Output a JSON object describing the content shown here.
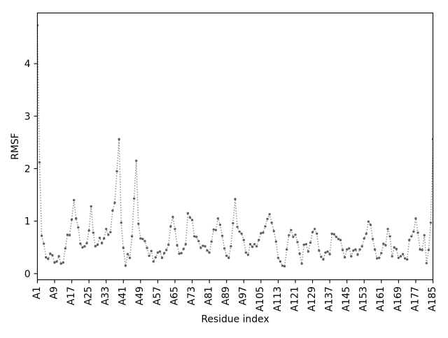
{
  "chart_data": {
    "type": "line",
    "title": "",
    "xlabel": "Residue index",
    "ylabel": "RMSF",
    "x_tick_labels": [
      "A1",
      "A9",
      "A17",
      "A25",
      "A33",
      "A41",
      "A49",
      "A57",
      "A65",
      "A73",
      "A81",
      "A89",
      "A97",
      "A105",
      "A113",
      "A121",
      "A129",
      "A137",
      "A145",
      "A153",
      "A161",
      "A169",
      "A177",
      "A185"
    ],
    "x_tick_step": 8,
    "yticks": [
      0,
      1,
      2,
      3,
      4
    ],
    "ylim": [
      -0.117,
      4.965
    ],
    "grid": false,
    "legend": null,
    "line_style": "dotted",
    "marker": "point",
    "line_color": "#848484",
    "marker_color": "#616161",
    "values": [
      4.73,
      2.12,
      0.72,
      0.57,
      0.31,
      0.28,
      0.38,
      0.35,
      0.21,
      0.23,
      0.33,
      0.19,
      0.21,
      0.48,
      0.74,
      0.73,
      1.03,
      1.4,
      1.05,
      0.88,
      0.57,
      0.5,
      0.52,
      0.58,
      0.82,
      1.28,
      0.78,
      0.52,
      0.55,
      0.68,
      0.58,
      0.67,
      0.85,
      0.74,
      0.79,
      1.2,
      1.35,
      1.95,
      2.56,
      0.97,
      0.49,
      0.15,
      0.37,
      0.3,
      0.71,
      1.43,
      2.15,
      0.95,
      0.67,
      0.66,
      0.62,
      0.49,
      0.34,
      0.43,
      0.23,
      0.31,
      0.4,
      0.42,
      0.3,
      0.39,
      0.45,
      0.55,
      0.9,
      1.08,
      0.85,
      0.54,
      0.38,
      0.39,
      0.47,
      0.56,
      1.15,
      1.07,
      1.02,
      0.71,
      0.7,
      0.62,
      0.49,
      0.53,
      0.52,
      0.44,
      0.4,
      0.61,
      0.84,
      0.83,
      1.05,
      0.93,
      0.72,
      0.48,
      0.34,
      0.3,
      0.52,
      0.96,
      1.42,
      0.89,
      0.8,
      0.76,
      0.64,
      0.4,
      0.36,
      0.56,
      0.51,
      0.56,
      0.52,
      0.64,
      0.77,
      0.78,
      0.9,
      1.04,
      1.13,
      0.97,
      0.81,
      0.61,
      0.3,
      0.23,
      0.15,
      0.14,
      0.46,
      0.73,
      0.83,
      0.7,
      0.74,
      0.6,
      0.38,
      0.19,
      0.55,
      0.56,
      0.42,
      0.59,
      0.79,
      0.85,
      0.76,
      0.44,
      0.32,
      0.27,
      0.4,
      0.42,
      0.37,
      0.76,
      0.75,
      0.7,
      0.66,
      0.64,
      0.45,
      0.31,
      0.46,
      0.48,
      0.33,
      0.44,
      0.46,
      0.36,
      0.46,
      0.52,
      0.67,
      0.76,
      0.99,
      0.93,
      0.66,
      0.46,
      0.29,
      0.3,
      0.39,
      0.57,
      0.54,
      0.85,
      0.71,
      0.33,
      0.5,
      0.47,
      0.3,
      0.33,
      0.37,
      0.29,
      0.27,
      0.64,
      0.71,
      0.8,
      1.05,
      0.78,
      0.46,
      0.45,
      0.73,
      0.2,
      0.45,
      0.97,
      2.56
    ]
  }
}
